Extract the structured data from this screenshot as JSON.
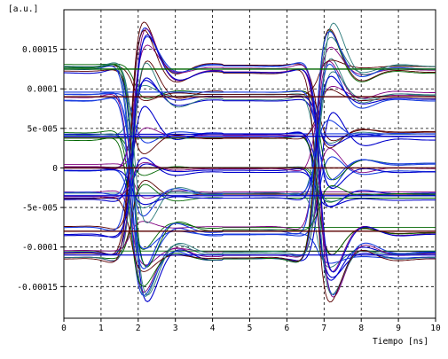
{
  "chart_data": {
    "type": "line",
    "title": "",
    "ylabel": "[a.u.]",
    "xlabel": "Tiempo [ns]",
    "xlim": [
      0,
      10
    ],
    "ylim": [
      -0.00019,
      0.0002
    ],
    "x_ticks": [
      0,
      1,
      2,
      3,
      4,
      5,
      6,
      7,
      8,
      9,
      10
    ],
    "x_tick_labels": [
      "0",
      "1",
      "2",
      "3",
      "4",
      "5",
      "6",
      "7",
      "8",
      "9",
      "10"
    ],
    "y_ticks": [
      0.00015,
      0.0001,
      5e-05,
      0,
      -5e-05,
      -0.0001,
      -0.00015
    ],
    "y_tick_labels": [
      "0.00015",
      "0.0001",
      "5e-005",
      "0",
      "-5e-005",
      "-0.0001",
      "-0.00015"
    ],
    "grid": true,
    "grid_style": "dashed",
    "legend": "none",
    "eye_diagram": {
      "unit_interval_ns": 5,
      "transition_centers_ns": [
        1.8,
        6.8
      ],
      "levels": [
        0.000125,
        9e-05,
        4e-05,
        0,
        -3.5e-05,
        -8e-05,
        -0.00011
      ],
      "overshoot_peak": 0.000172,
      "undershoot_peak": -0.000175
    },
    "series_colors": [
      "#0000cc",
      "#1a3fe0",
      "#006600",
      "#800080",
      "#5a0000",
      "#2a7a7a"
    ]
  }
}
